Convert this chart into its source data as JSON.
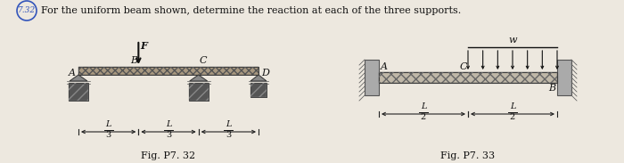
{
  "bg_color": "#ede8df",
  "title_text": "For the uniform beam shown, determine the reaction at each of the three supports.",
  "problem_num": "7.32",
  "fig1_caption": "Fig. P7. 32",
  "fig2_caption": "Fig. P7. 33",
  "beam_color": "#a89880",
  "beam_color2": "#c0b8a8",
  "support_dark": "#444444",
  "support_mid": "#777777",
  "wall_color": "#888878",
  "text_color": "#111111",
  "dim_color": "#222222",
  "circle_color": "#3355bb",
  "arrow_color": "#111111"
}
